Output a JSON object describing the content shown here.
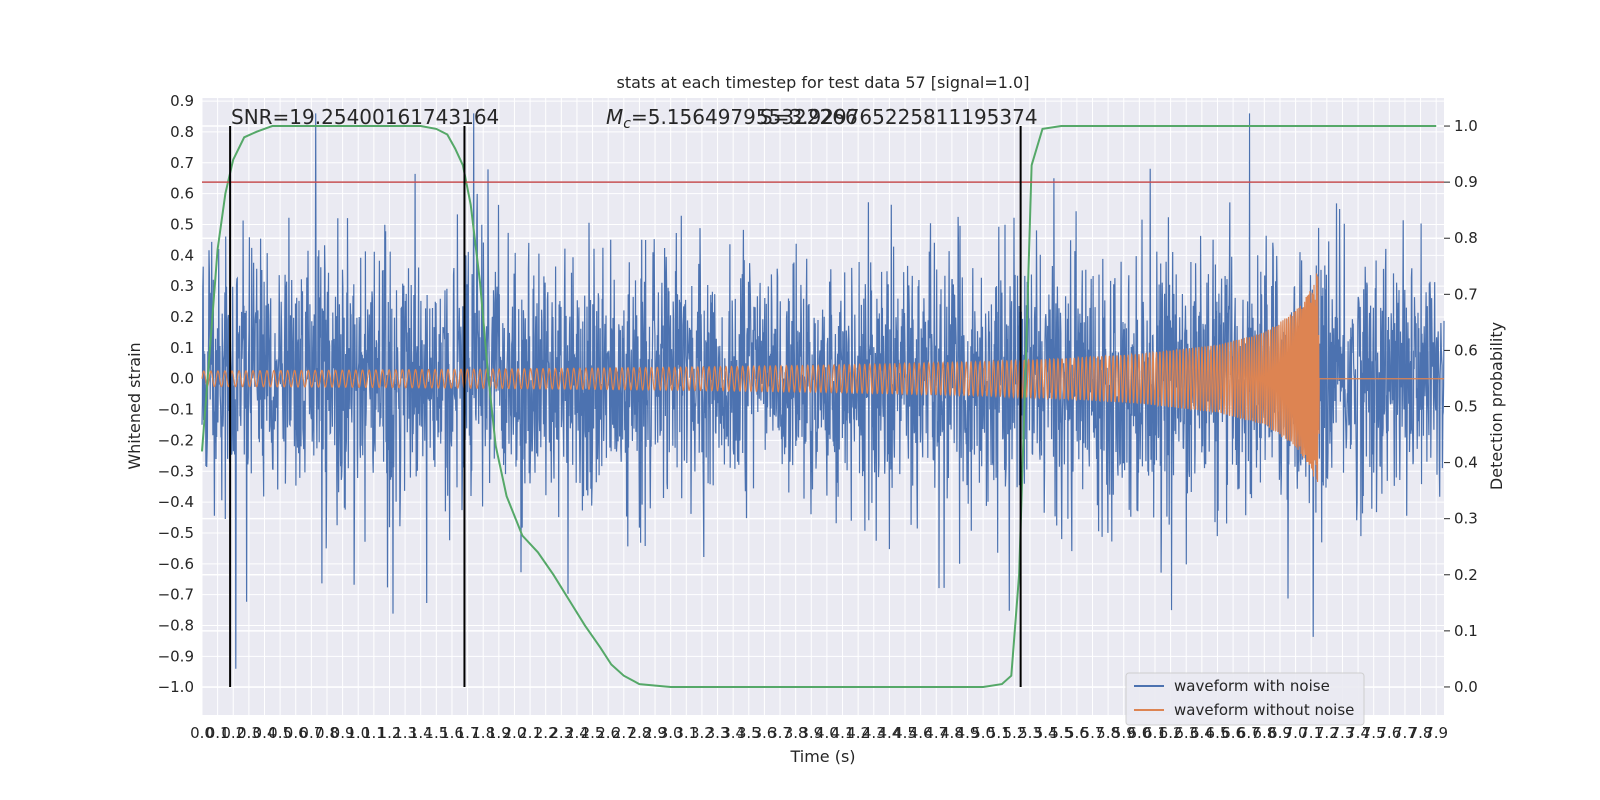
{
  "chart_data": {
    "type": "line",
    "title": "stats at each timestep for test data 57 [signal=1.0]",
    "xlabel": "Time (s)",
    "ylabel": "Whitened strain",
    "y2label": "Detection probability",
    "xlim": [
      0.0,
      7.95
    ],
    "ylim": [
      -1.09,
      0.91
    ],
    "y2lim": [
      -0.05,
      1.05
    ],
    "x_ticks": [
      0.0,
      0.1,
      0.2,
      0.3,
      0.4,
      0.5,
      0.6,
      0.7,
      0.8,
      0.9,
      1.0,
      1.1,
      1.2,
      1.3,
      1.4,
      1.5,
      1.6,
      1.7,
      1.8,
      1.9,
      2.0,
      2.1,
      2.2,
      2.3,
      2.4,
      2.5,
      2.6,
      2.7,
      2.8,
      2.9,
      3.0,
      3.1,
      3.2,
      3.3,
      3.4,
      3.5,
      3.6,
      3.7,
      3.8,
      3.9,
      4.0,
      4.1,
      4.2,
      4.3,
      4.4,
      4.5,
      4.6,
      4.7,
      4.8,
      4.9,
      5.0,
      5.1,
      5.2,
      5.3,
      5.4,
      5.5,
      5.6,
      5.7,
      5.8,
      5.9,
      6.0,
      6.1,
      6.2,
      6.3,
      6.4,
      6.5,
      6.6,
      6.7,
      6.8,
      6.9,
      7.0,
      7.1,
      7.2,
      7.3,
      7.4,
      7.5,
      7.6,
      7.7,
      7.8,
      7.9
    ],
    "y_ticks": [
      0.9,
      0.8,
      0.7,
      0.6,
      0.5,
      0.4,
      0.3,
      0.2,
      0.1,
      0.0,
      -0.1,
      -0.2,
      -0.3,
      -0.4,
      -0.5,
      -0.6,
      -0.7,
      -0.8,
      -0.9,
      -1.0
    ],
    "y2_ticks": [
      0.0,
      0.1,
      0.2,
      0.3,
      0.4,
      0.5,
      0.6,
      0.7,
      0.8,
      0.9,
      1.0
    ],
    "grid": true,
    "legend_position": "bottom-right",
    "colors": {
      "noise": "#4c72b0",
      "clean": "#dd8452",
      "probability": "#55a868",
      "threshold": "#c44e52",
      "markers": "#000000",
      "background": "#eaeaf2",
      "grid": "#ffffff"
    },
    "series": [
      {
        "name": "waveform with noise",
        "axis": "left",
        "description": "noisy whitened strain, amplitude ~0.3-0.9"
      },
      {
        "name": "waveform without noise",
        "axis": "left",
        "envelope": [
          [
            0.0,
            0.025
          ],
          [
            1.0,
            0.028
          ],
          [
            2.0,
            0.032
          ],
          [
            3.0,
            0.037
          ],
          [
            4.0,
            0.044
          ],
          [
            5.0,
            0.055
          ],
          [
            5.5,
            0.065
          ],
          [
            6.0,
            0.08
          ],
          [
            6.5,
            0.11
          ],
          [
            6.8,
            0.15
          ],
          [
            7.0,
            0.22
          ],
          [
            7.1,
            0.29
          ],
          [
            7.15,
            0.38
          ],
          [
            7.16,
            0.0
          ],
          [
            7.95,
            0.0
          ]
        ],
        "peak_time": 7.15
      },
      {
        "name": "",
        "axis": "right",
        "points": [
          [
            0.0,
            0.42
          ],
          [
            0.05,
            0.6
          ],
          [
            0.1,
            0.78
          ],
          [
            0.15,
            0.88
          ],
          [
            0.2,
            0.94
          ],
          [
            0.27,
            0.98
          ],
          [
            0.35,
            0.99
          ],
          [
            0.45,
            1.0
          ],
          [
            0.6,
            1.0
          ],
          [
            1.0,
            1.0
          ],
          [
            1.4,
            1.0
          ],
          [
            1.5,
            0.995
          ],
          [
            1.57,
            0.985
          ],
          [
            1.62,
            0.96
          ],
          [
            1.67,
            0.93
          ],
          [
            1.72,
            0.86
          ],
          [
            1.78,
            0.72
          ],
          [
            1.83,
            0.56
          ],
          [
            1.88,
            0.43
          ],
          [
            1.95,
            0.34
          ],
          [
            2.05,
            0.27
          ],
          [
            2.15,
            0.24
          ],
          [
            2.25,
            0.2
          ],
          [
            2.35,
            0.155
          ],
          [
            2.45,
            0.11
          ],
          [
            2.55,
            0.07
          ],
          [
            2.62,
            0.04
          ],
          [
            2.7,
            0.02
          ],
          [
            2.8,
            0.005
          ],
          [
            3.0,
            0.0
          ],
          [
            4.0,
            0.0
          ],
          [
            5.0,
            0.0
          ],
          [
            5.12,
            0.005
          ],
          [
            5.18,
            0.02
          ],
          [
            5.23,
            0.2
          ],
          [
            5.27,
            0.55
          ],
          [
            5.31,
            0.93
          ],
          [
            5.38,
            0.995
          ],
          [
            5.5,
            1.0
          ],
          [
            6.0,
            1.0
          ],
          [
            7.0,
            1.0
          ],
          [
            7.9,
            1.0
          ]
        ]
      }
    ],
    "threshold": 0.9,
    "vlines": [
      0.18,
      1.68,
      5.24
    ],
    "annotations": [
      {
        "label": "SNR=19.25400161743164"
      },
      {
        "label_prefix": "M",
        "label_sub": "c",
        "label_rest": "=5.156497955322266"
      },
      {
        "label": "S=3.929765225811195374"
      }
    ]
  }
}
